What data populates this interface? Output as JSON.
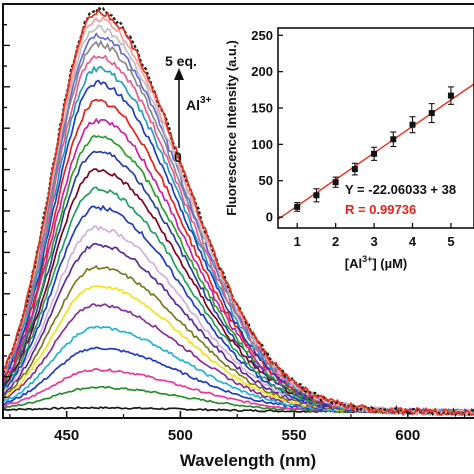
{
  "chart_data": [
    {
      "type": "line",
      "xlabel": "Wavelength (nm)",
      "xlim": [
        422,
        630
      ],
      "ylim": [
        0,
        1000
      ],
      "x_ticks": [
        "450",
        "500",
        "550",
        "600"
      ],
      "x_tick_values": [
        450,
        500,
        550,
        600
      ],
      "peak_x": 463,
      "baseline_end": 20,
      "series": [
        {
          "color": "#1a1a1a",
          "peak": 6
        },
        {
          "color": "#2a8f2a",
          "peak": 55
        },
        {
          "color": "#e8389a",
          "peak": 98
        },
        {
          "color": "#1f3dbf",
          "peak": 150
        },
        {
          "color": "#1fb5d4",
          "peak": 200
        },
        {
          "color": "#8a2f9a",
          "peak": 255
        },
        {
          "color": "#f2e21a",
          "peak": 300
        },
        {
          "color": "#7a7a20",
          "peak": 345
        },
        {
          "color": "#5a2a9a",
          "peak": 400
        },
        {
          "color": "#d4b0d8",
          "peak": 440
        },
        {
          "color": "#1f3dbf",
          "peak": 490
        },
        {
          "color": "#20a060",
          "peak": 535
        },
        {
          "color": "#800020",
          "peak": 580
        },
        {
          "color": "#2a40a0",
          "peak": 625
        },
        {
          "color": "#2aa02a",
          "peak": 660
        },
        {
          "color": "#cc1faa",
          "peak": 700
        },
        {
          "color": "#e8201a",
          "peak": 745
        },
        {
          "color": "#1f3dbf",
          "peak": 790
        },
        {
          "color": "#20a0c0",
          "peak": 825
        },
        {
          "color": "#e85a90",
          "peak": 855
        },
        {
          "color": "#8a8a8a",
          "peak": 885
        },
        {
          "color": "#6a6ad4",
          "peak": 905
        },
        {
          "color": "#bfbfbf",
          "peak": 925
        },
        {
          "color": "#f0a0a0",
          "peak": 945
        },
        {
          "color": "#1a1a1a",
          "peak": 968,
          "dashed": true
        },
        {
          "color": "#e8301a",
          "peak": 962
        }
      ]
    },
    {
      "type": "scatter",
      "title": "",
      "xlabel_main": "[Al",
      "xlabel_sup": "3+",
      "xlabel_tail": "] (µM)",
      "ylabel": "Fluorescence Intensity (a.u.)",
      "xlim": [
        0.5,
        5.6
      ],
      "ylim": [
        -15,
        260
      ],
      "x_ticks": [
        "1",
        "2",
        "3",
        "4",
        "5"
      ],
      "x_tick_values": [
        1,
        2,
        3,
        4,
        5
      ],
      "y_ticks": [
        "0",
        "50",
        "100",
        "150",
        "200",
        "250"
      ],
      "y_tick_values": [
        0,
        50,
        100,
        150,
        200,
        250
      ],
      "points": [
        {
          "x": 1.0,
          "y": 14,
          "err": 6
        },
        {
          "x": 1.5,
          "y": 30,
          "err": 9
        },
        {
          "x": 2.0,
          "y": 48,
          "err": 7
        },
        {
          "x": 2.5,
          "y": 66,
          "err": 8
        },
        {
          "x": 3.0,
          "y": 87,
          "err": 9
        },
        {
          "x": 3.5,
          "y": 107,
          "err": 10
        },
        {
          "x": 4.0,
          "y": 127,
          "err": 11
        },
        {
          "x": 4.5,
          "y": 143,
          "err": 13
        },
        {
          "x": 5.0,
          "y": 167,
          "err": 12
        }
      ],
      "fit_line": {
        "x": [
          0.5,
          5.6
        ],
        "y": [
          -3,
          183
        ],
        "color": "#e8301a"
      },
      "equation": "Y = -22.06033 + 38",
      "r_value": "R = 0.99736",
      "r_color": "#e8201a"
    }
  ],
  "annotation": {
    "top_label": "5 eq.",
    "ion": "Al",
    "ion_charge": "3+",
    "bottom_label": "0"
  }
}
